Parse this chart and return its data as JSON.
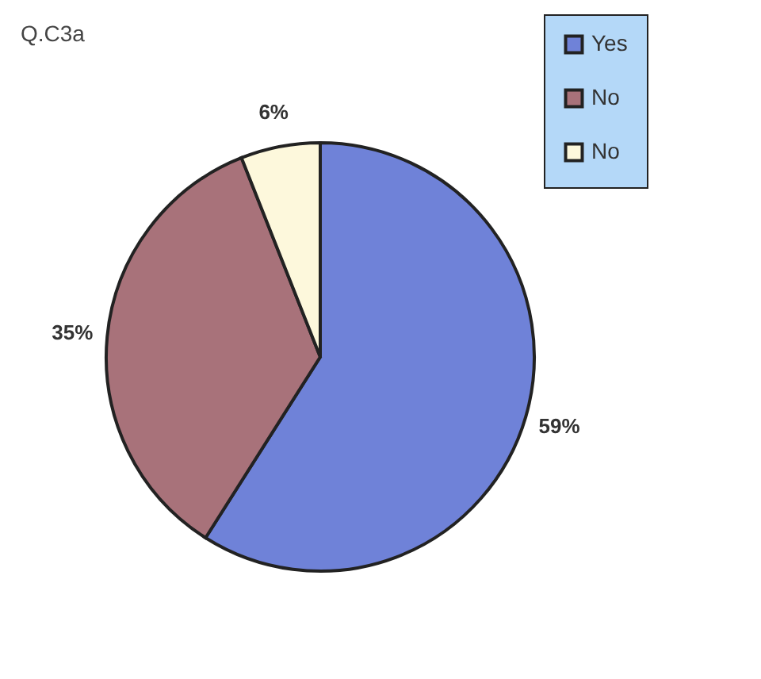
{
  "chart_data": {
    "type": "pie",
    "title": "Q.C3a",
    "categories": [
      "Yes",
      "No",
      "No"
    ],
    "values": [
      59,
      35,
      6
    ],
    "colors": [
      "#6f82d8",
      "#a8727a",
      "#fdf8dc"
    ],
    "value_labels": [
      "59%",
      "35%",
      "6%"
    ],
    "legend": "top right"
  }
}
